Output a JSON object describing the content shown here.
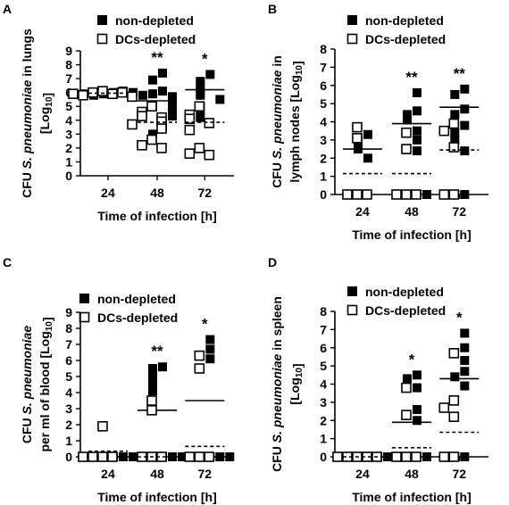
{
  "legend": {
    "non_depleted": "non-depleted",
    "dcs_depleted": "DCs-depleted"
  },
  "chart_data": [
    {
      "panel": "A",
      "type": "scatter",
      "ylabel_lines": [
        "CFU S. pneumoniae in lungs",
        "[Log10]"
      ],
      "xlabel": "Time of infection [h]",
      "categories": [
        "24",
        "48",
        "72"
      ],
      "ylim": [
        0,
        9
      ],
      "yticks": [
        0,
        1,
        2,
        3,
        4,
        5,
        6,
        7,
        8,
        9
      ],
      "series": [
        {
          "name": "non-depleted",
          "values": [
            [
              6.0,
              5.9,
              6.1,
              5.8,
              6.0,
              5.9,
              5.8
            ],
            [
              7.4,
              6.9,
              6.1,
              5.9,
              5.7,
              5.3,
              5.0,
              4.9,
              4.6,
              4.3,
              3.5,
              3.0
            ],
            [
              7.3,
              6.8,
              6.5,
              6.0,
              5.8,
              5.5,
              5.0,
              4.7,
              4.2
            ]
          ],
          "mean": [
            5.95,
            5.4,
            6.2
          ]
        },
        {
          "name": "DCs-depleted",
          "values": [
            [
              6.1,
              6.0,
              5.9,
              5.8,
              6.0,
              5.9,
              5.7
            ],
            [
              5.0,
              4.6,
              4.3,
              4.2,
              3.9,
              3.7,
              3.4,
              2.6,
              2.2,
              2.0
            ],
            [
              5.0,
              4.4,
              4.1,
              3.8,
              3.3,
              2.0,
              1.6,
              1.5
            ]
          ],
          "mean": [
            5.95,
            3.85,
            3.85
          ]
        }
      ],
      "significance": [
        "",
        "**",
        "*"
      ]
    },
    {
      "panel": "B",
      "type": "scatter",
      "ylabel_lines": [
        "CFU S. pneumoniae in",
        "lymph nodes [Log10]"
      ],
      "xlabel": "Time of infection [h]",
      "categories": [
        "24",
        "48",
        "72"
      ],
      "ylim": [
        0,
        8
      ],
      "yticks": [
        0,
        1,
        2,
        3,
        4,
        5,
        6,
        7,
        8
      ],
      "series": [
        {
          "name": "non-depleted",
          "values": [
            [
              3.3,
              3.0,
              2.8,
              2.5,
              2.0
            ],
            [
              5.6,
              4.6,
              4.4,
              4.1,
              3.5,
              3.0,
              2.4,
              0,
              0,
              0
            ],
            [
              5.8,
              5.5,
              4.7,
              4.4,
              3.8,
              3.4,
              3.0,
              2.4,
              0,
              0
            ]
          ],
          "mean": [
            2.5,
            3.9,
            4.8
          ]
        },
        {
          "name": "DCs-depleted",
          "values": [
            [
              3.7,
              3.1,
              0,
              0,
              0
            ],
            [
              3.4,
              2.5,
              0,
              0,
              0
            ],
            [
              3.9,
              3.5,
              2.6,
              0,
              0
            ]
          ],
          "mean": [
            1.15,
            1.15,
            2.45
          ]
        }
      ],
      "significance": [
        "",
        "**",
        "**"
      ]
    },
    {
      "panel": "C",
      "type": "scatter",
      "ylabel_lines": [
        "CFU S. pneumoniae",
        "per ml of blood [Log10]"
      ],
      "xlabel": "Time of infection [h]",
      "categories": [
        "24",
        "48",
        "72"
      ],
      "ylim": [
        0,
        9
      ],
      "yticks": [
        0,
        1,
        2,
        3,
        4,
        5,
        6,
        7,
        8,
        9
      ],
      "series": [
        {
          "name": "non-depleted",
          "values": [
            [
              0,
              0,
              0,
              0,
              0
            ],
            [
              5.6,
              5.5,
              5.0,
              4.5,
              4.1,
              0,
              0,
              0,
              0,
              0
            ],
            [
              7.3,
              6.7,
              6.1,
              0,
              0,
              0,
              0,
              0
            ]
          ],
          "mean": [
            0,
            2.9,
            3.5
          ]
        },
        {
          "name": "DCs-depleted",
          "values": [
            [
              1.9,
              0,
              0,
              0,
              0
            ],
            [
              3.5,
              2.9,
              0,
              0,
              0
            ],
            [
              6.3,
              5.5,
              0,
              0,
              0
            ]
          ],
          "mean": [
            0.35,
            0,
            0.65
          ]
        }
      ],
      "significance": [
        "",
        "**",
        "*"
      ]
    },
    {
      "panel": "D",
      "type": "scatter",
      "ylabel_lines": [
        "CFU S. pneumoniae in spleen",
        "[Log10]"
      ],
      "xlabel": "Time of infection [h]",
      "categories": [
        "24",
        "48",
        "72"
      ],
      "ylim": [
        0,
        8
      ],
      "yticks": [
        0,
        1,
        2,
        3,
        4,
        5,
        6,
        7,
        8
      ],
      "series": [
        {
          "name": "non-depleted",
          "values": [
            [
              0,
              0,
              0,
              0,
              0
            ],
            [
              4.5,
              4.3,
              3.8,
              2.6,
              2.0,
              0,
              0,
              0,
              0
            ],
            [
              6.8,
              6.0,
              5.3,
              4.7,
              4.4,
              3.9,
              0,
              0
            ]
          ],
          "mean": [
            0,
            1.9,
            4.3
          ]
        },
        {
          "name": "DCs-depleted",
          "values": [
            [
              0,
              0,
              0,
              0,
              0
            ],
            [
              3.8,
              2.3,
              0,
              0,
              0
            ],
            [
              5.7,
              3.1,
              2.7,
              2.2,
              0,
              0
            ]
          ],
          "mean": [
            0,
            0.5,
            1.35
          ]
        }
      ],
      "significance": [
        "",
        "*",
        "*"
      ]
    }
  ]
}
